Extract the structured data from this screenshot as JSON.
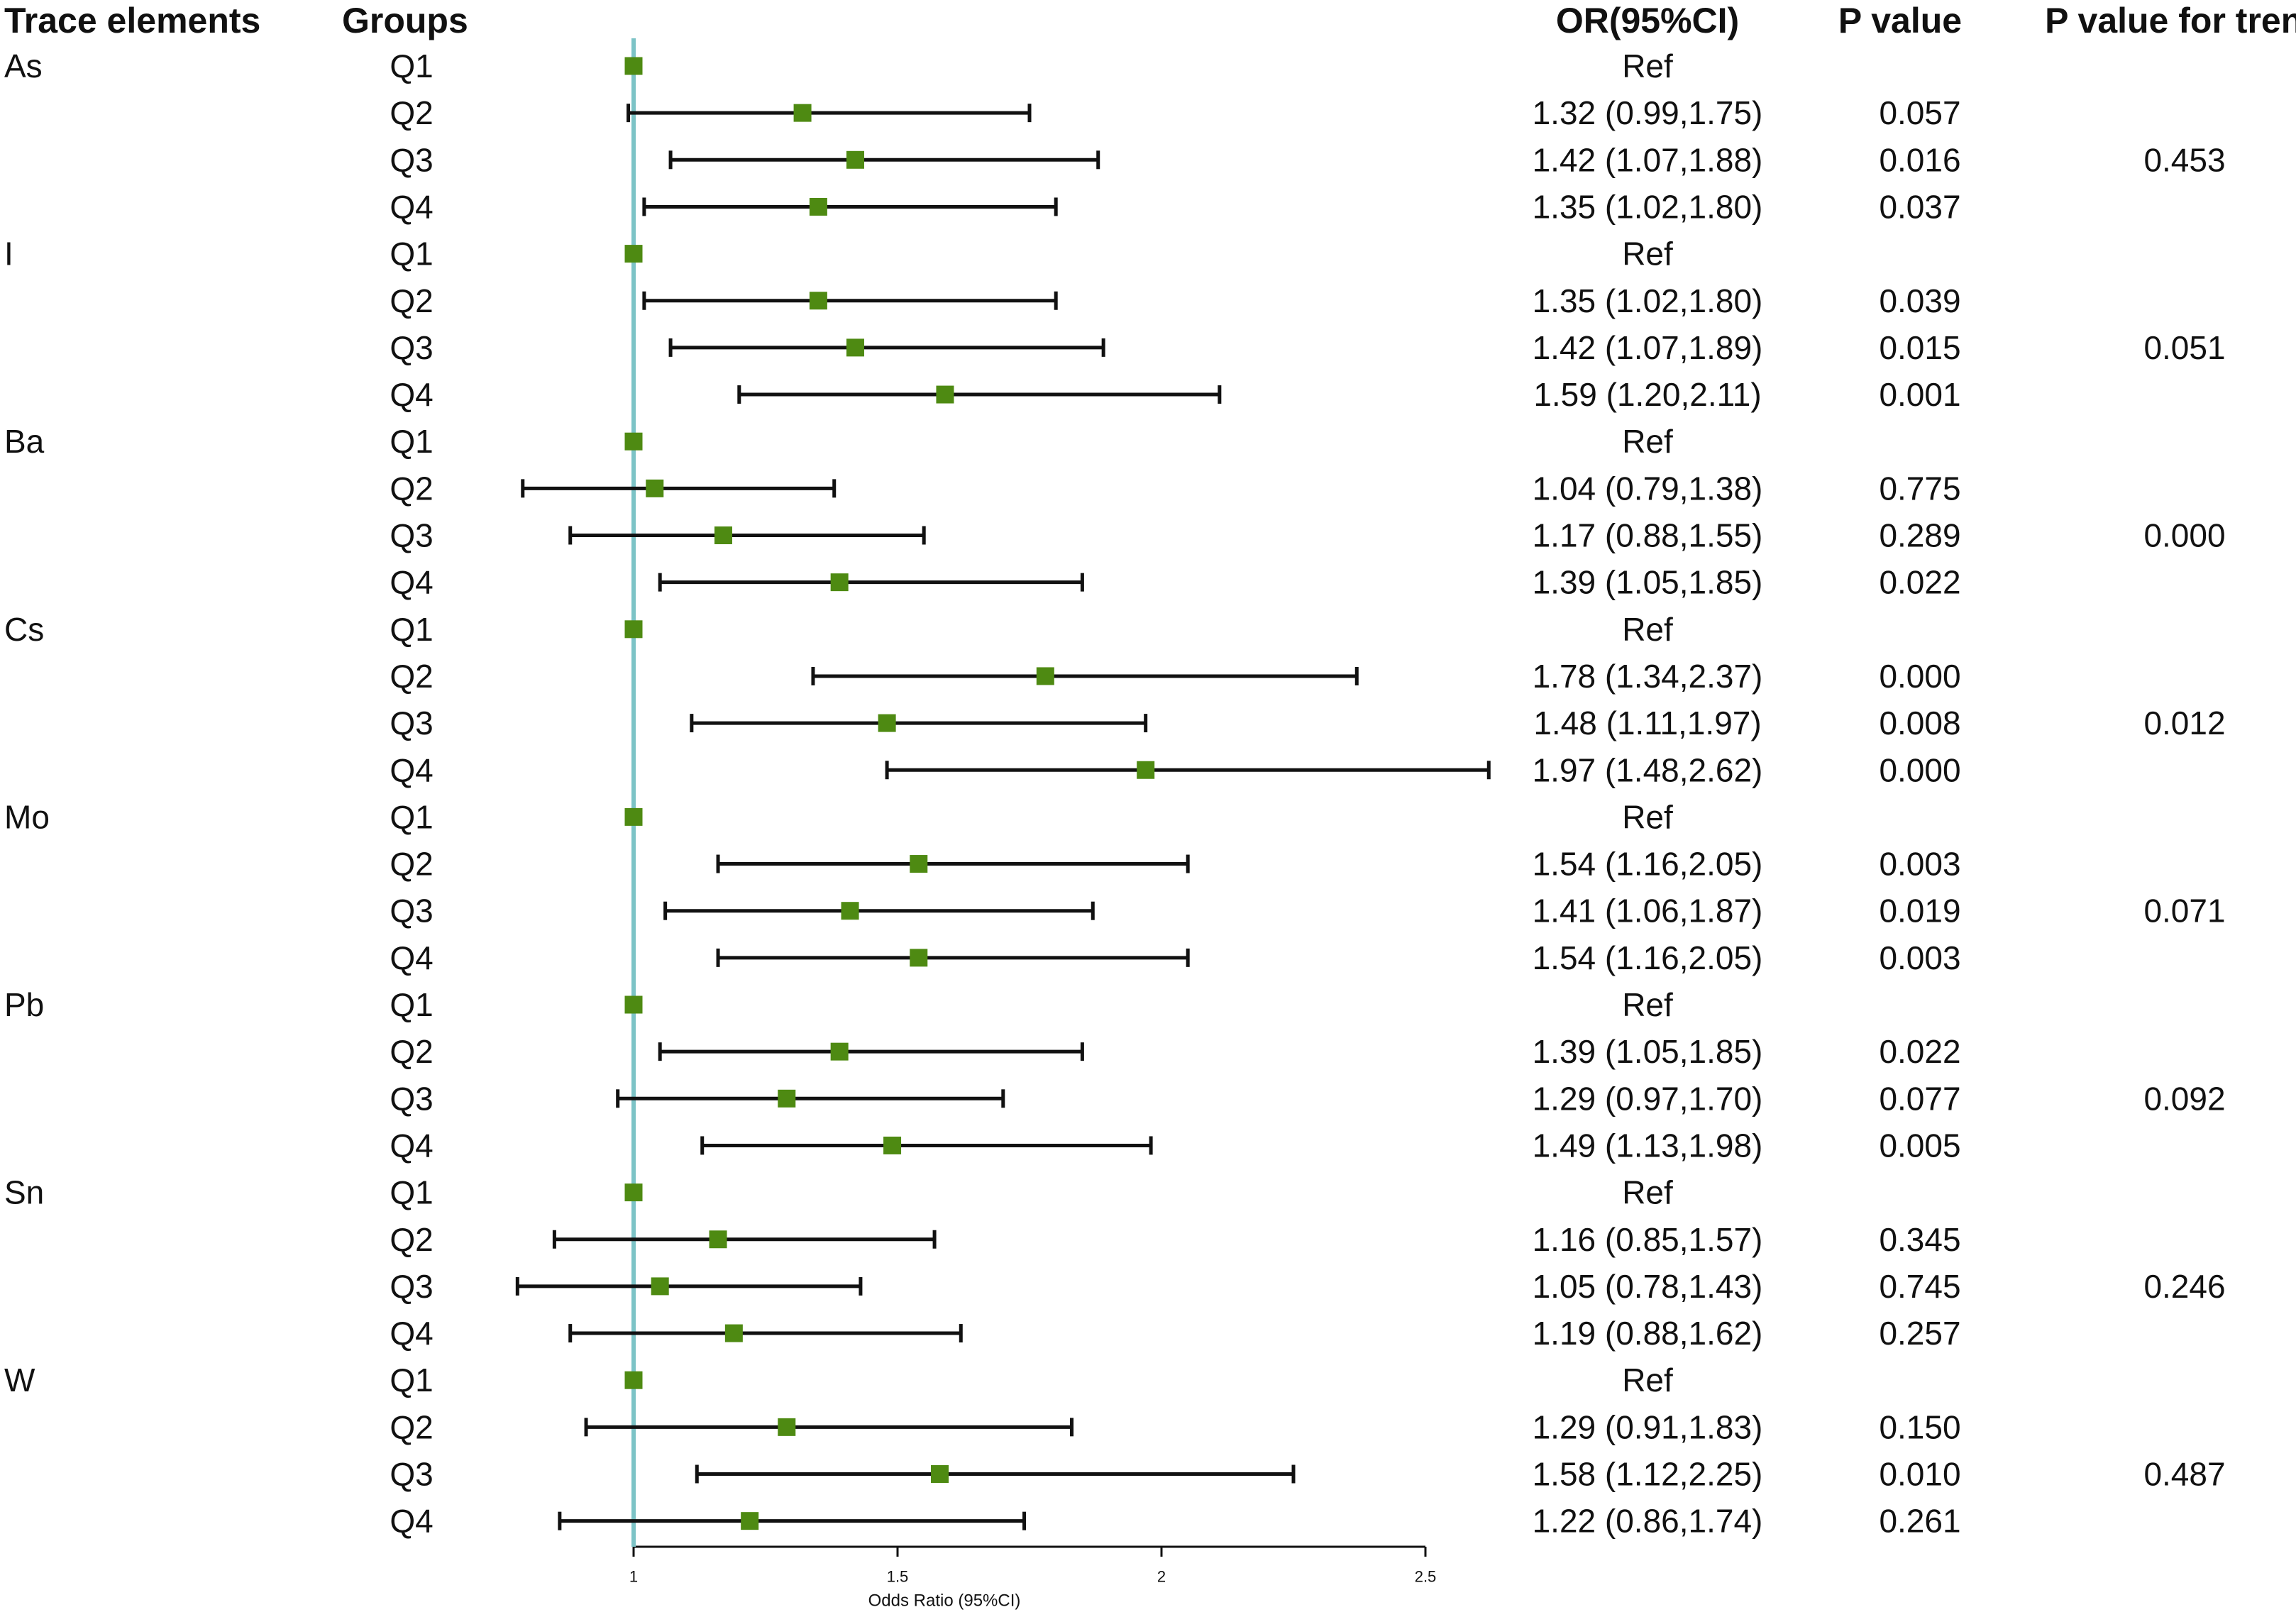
{
  "chart_data": {
    "type": "forest",
    "xlabel": "Odds Ratio (95%CI)",
    "xlim": [
      0.8,
      2.5
    ],
    "xticks": [
      1,
      1.5,
      2,
      2.5
    ],
    "xtick_labels": [
      "1",
      "1.5",
      "2",
      "2.5"
    ],
    "reference_line": 1,
    "colors": {
      "marker": "#4e8a12",
      "reference_line": "#7cc3c6",
      "whisker": "#111111"
    },
    "headers": {
      "element": "Trace elements",
      "group": "Groups",
      "or": "OR(95%CI)",
      "p": "P value",
      "trend": "P value for trend"
    },
    "elements": [
      {
        "name": "As",
        "trend": "0.453",
        "rows": [
          {
            "group": "Q1",
            "or": 1,
            "lo": null,
            "hi": null,
            "label": "Ref",
            "p": ""
          },
          {
            "group": "Q2",
            "or": 1.32,
            "lo": 0.99,
            "hi": 1.75,
            "label": "1.32 (0.99,1.75)",
            "p": "0.057"
          },
          {
            "group": "Q3",
            "or": 1.42,
            "lo": 1.07,
            "hi": 1.88,
            "label": "1.42 (1.07,1.88)",
            "p": "0.016"
          },
          {
            "group": "Q4",
            "or": 1.35,
            "lo": 1.02,
            "hi": 1.8,
            "label": "1.35 (1.02,1.80)",
            "p": "0.037"
          }
        ]
      },
      {
        "name": "I",
        "trend": "0.051",
        "rows": [
          {
            "group": "Q1",
            "or": 1,
            "lo": null,
            "hi": null,
            "label": "Ref",
            "p": ""
          },
          {
            "group": "Q2",
            "or": 1.35,
            "lo": 1.02,
            "hi": 1.8,
            "label": "1.35 (1.02,1.80)",
            "p": "0.039"
          },
          {
            "group": "Q3",
            "or": 1.42,
            "lo": 1.07,
            "hi": 1.89,
            "label": "1.42 (1.07,1.89)",
            "p": "0.015"
          },
          {
            "group": "Q4",
            "or": 1.59,
            "lo": 1.2,
            "hi": 2.11,
            "label": "1.59 (1.20,2.11)",
            "p": "0.001"
          }
        ]
      },
      {
        "name": "Ba",
        "trend": "0.000",
        "rows": [
          {
            "group": "Q1",
            "or": 1,
            "lo": null,
            "hi": null,
            "label": "Ref",
            "p": ""
          },
          {
            "group": "Q2",
            "or": 1.04,
            "lo": 0.79,
            "hi": 1.38,
            "label": "1.04 (0.79,1.38)",
            "p": "0.775"
          },
          {
            "group": "Q3",
            "or": 1.17,
            "lo": 0.88,
            "hi": 1.55,
            "label": "1.17 (0.88,1.55)",
            "p": "0.289"
          },
          {
            "group": "Q4",
            "or": 1.39,
            "lo": 1.05,
            "hi": 1.85,
            "label": "1.39 (1.05,1.85)",
            "p": "0.022"
          }
        ]
      },
      {
        "name": "Cs",
        "trend": "0.012",
        "rows": [
          {
            "group": "Q1",
            "or": 1,
            "lo": null,
            "hi": null,
            "label": "Ref",
            "p": ""
          },
          {
            "group": "Q2",
            "or": 1.78,
            "lo": 1.34,
            "hi": 2.37,
            "label": "1.78 (1.34,2.37)",
            "p": "0.000"
          },
          {
            "group": "Q3",
            "or": 1.48,
            "lo": 1.11,
            "hi": 1.97,
            "label": "1.48 (1.11,1.97)",
            "p": "0.008"
          },
          {
            "group": "Q4",
            "or": 1.97,
            "lo": 1.48,
            "hi": 2.62,
            "label": "1.97 (1.48,2.62)",
            "p": "0.000"
          }
        ]
      },
      {
        "name": "Mo",
        "trend": "0.071",
        "rows": [
          {
            "group": "Q1",
            "or": 1,
            "lo": null,
            "hi": null,
            "label": "Ref",
            "p": ""
          },
          {
            "group": "Q2",
            "or": 1.54,
            "lo": 1.16,
            "hi": 2.05,
            "label": "1.54 (1.16,2.05)",
            "p": "0.003"
          },
          {
            "group": "Q3",
            "or": 1.41,
            "lo": 1.06,
            "hi": 1.87,
            "label": "1.41 (1.06,1.87)",
            "p": "0.019"
          },
          {
            "group": "Q4",
            "or": 1.54,
            "lo": 1.16,
            "hi": 2.05,
            "label": "1.54 (1.16,2.05)",
            "p": "0.003"
          }
        ]
      },
      {
        "name": "Pb",
        "trend": "0.092",
        "rows": [
          {
            "group": "Q1",
            "or": 1,
            "lo": null,
            "hi": null,
            "label": "Ref",
            "p": ""
          },
          {
            "group": "Q2",
            "or": 1.39,
            "lo": 1.05,
            "hi": 1.85,
            "label": "1.39 (1.05,1.85)",
            "p": "0.022"
          },
          {
            "group": "Q3",
            "or": 1.29,
            "lo": 0.97,
            "hi": 1.7,
            "label": "1.29 (0.97,1.70)",
            "p": "0.077"
          },
          {
            "group": "Q4",
            "or": 1.49,
            "lo": 1.13,
            "hi": 1.98,
            "label": "1.49 (1.13,1.98)",
            "p": "0.005"
          }
        ]
      },
      {
        "name": "Sn",
        "trend": "0.246",
        "rows": [
          {
            "group": "Q1",
            "or": 1,
            "lo": null,
            "hi": null,
            "label": "Ref",
            "p": ""
          },
          {
            "group": "Q2",
            "or": 1.16,
            "lo": 0.85,
            "hi": 1.57,
            "label": "1.16 (0.85,1.57)",
            "p": "0.345"
          },
          {
            "group": "Q3",
            "or": 1.05,
            "lo": 0.78,
            "hi": 1.43,
            "label": "1.05 (0.78,1.43)",
            "p": "0.745"
          },
          {
            "group": "Q4",
            "or": 1.19,
            "lo": 0.88,
            "hi": 1.62,
            "label": "1.19 (0.88,1.62)",
            "p": "0.257"
          }
        ]
      },
      {
        "name": "W",
        "trend": "0.487",
        "rows": [
          {
            "group": "Q1",
            "or": 1,
            "lo": null,
            "hi": null,
            "label": "Ref",
            "p": ""
          },
          {
            "group": "Q2",
            "or": 1.29,
            "lo": 0.91,
            "hi": 1.83,
            "label": "1.29 (0.91,1.83)",
            "p": "0.150"
          },
          {
            "group": "Q3",
            "or": 1.58,
            "lo": 1.12,
            "hi": 2.25,
            "label": "1.58 (1.12,2.25)",
            "p": "0.010"
          },
          {
            "group": "Q4",
            "or": 1.22,
            "lo": 0.86,
            "hi": 1.74,
            "label": "1.22 (0.86,1.74)",
            "p": "0.261"
          }
        ]
      }
    ]
  }
}
